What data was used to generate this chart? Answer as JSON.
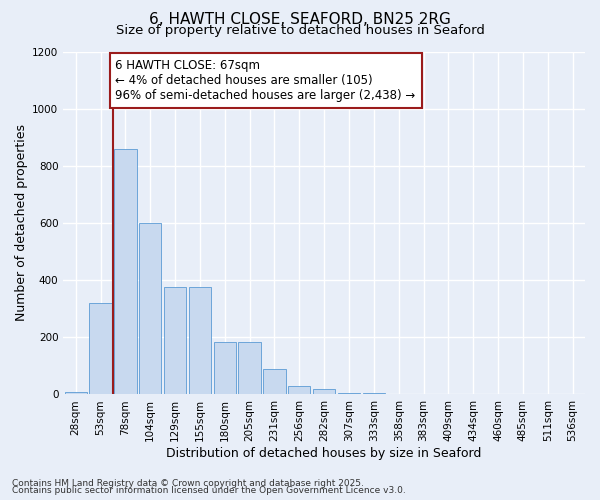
{
  "title_line1": "6, HAWTH CLOSE, SEAFORD, BN25 2RG",
  "title_line2": "Size of property relative to detached houses in Seaford",
  "xlabel": "Distribution of detached houses by size in Seaford",
  "ylabel": "Number of detached properties",
  "footnote1": "Contains HM Land Registry data © Crown copyright and database right 2025.",
  "footnote2": "Contains public sector information licensed under the Open Government Licence v3.0.",
  "annotation_line1": "6 HAWTH CLOSE: 67sqm",
  "annotation_line2": "← 4% of detached houses are smaller (105)",
  "annotation_line3": "96% of semi-detached houses are larger (2,438) →",
  "bar_color": "#c8d9ef",
  "bar_edge_color": "#5b9bd5",
  "vline_color": "#9b1c1c",
  "vline_x": 1.5,
  "categories": [
    "28sqm",
    "53sqm",
    "78sqm",
    "104sqm",
    "129sqm",
    "155sqm",
    "180sqm",
    "205sqm",
    "231sqm",
    "256sqm",
    "282sqm",
    "307sqm",
    "333sqm",
    "358sqm",
    "383sqm",
    "409sqm",
    "434sqm",
    "460sqm",
    "485sqm",
    "511sqm",
    "536sqm"
  ],
  "values": [
    10,
    320,
    860,
    600,
    375,
    375,
    185,
    185,
    90,
    30,
    20,
    5,
    5,
    0,
    0,
    0,
    0,
    0,
    0,
    0,
    0
  ],
  "ylim": [
    0,
    1200
  ],
  "yticks": [
    0,
    200,
    400,
    600,
    800,
    1000,
    1200
  ],
  "bg_color": "#e8eef8",
  "grid_color": "#ffffff",
  "title_fontsize": 11,
  "subtitle_fontsize": 9.5,
  "axis_label_fontsize": 9,
  "tick_fontsize": 7.5,
  "annotation_fontsize": 8.5,
  "footnote_fontsize": 6.5
}
